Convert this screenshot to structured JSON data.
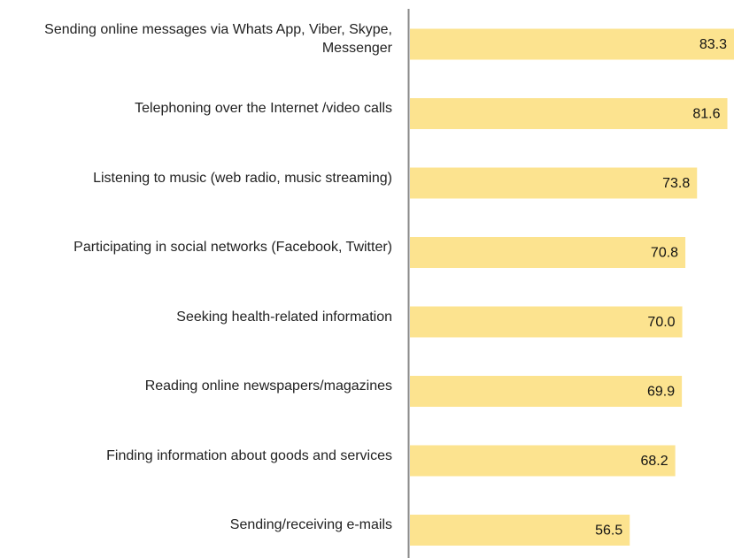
{
  "chart_data": {
    "type": "bar",
    "orientation": "horizontal",
    "categories": [
      "Sending online messages via Whats App, Viber, Skype, Messenger",
      "Telephoning over the Internet /video calls",
      "Listening to music (web radio, music streaming)",
      "Participating in social networks (Facebook, Twitter)",
      "Seeking health-related information",
      "Reading online newspapers/magazines",
      "Finding information about goods and services",
      "Sending/receiving e-mails"
    ],
    "values": [
      83.3,
      81.6,
      73.8,
      70.8,
      70.0,
      69.9,
      68.2,
      56.5
    ],
    "value_labels": [
      "83.3",
      "81.6",
      "73.8",
      "70.8",
      "70.0",
      "69.9",
      "68.2",
      "56.5"
    ],
    "color": "#fce38f"
  }
}
